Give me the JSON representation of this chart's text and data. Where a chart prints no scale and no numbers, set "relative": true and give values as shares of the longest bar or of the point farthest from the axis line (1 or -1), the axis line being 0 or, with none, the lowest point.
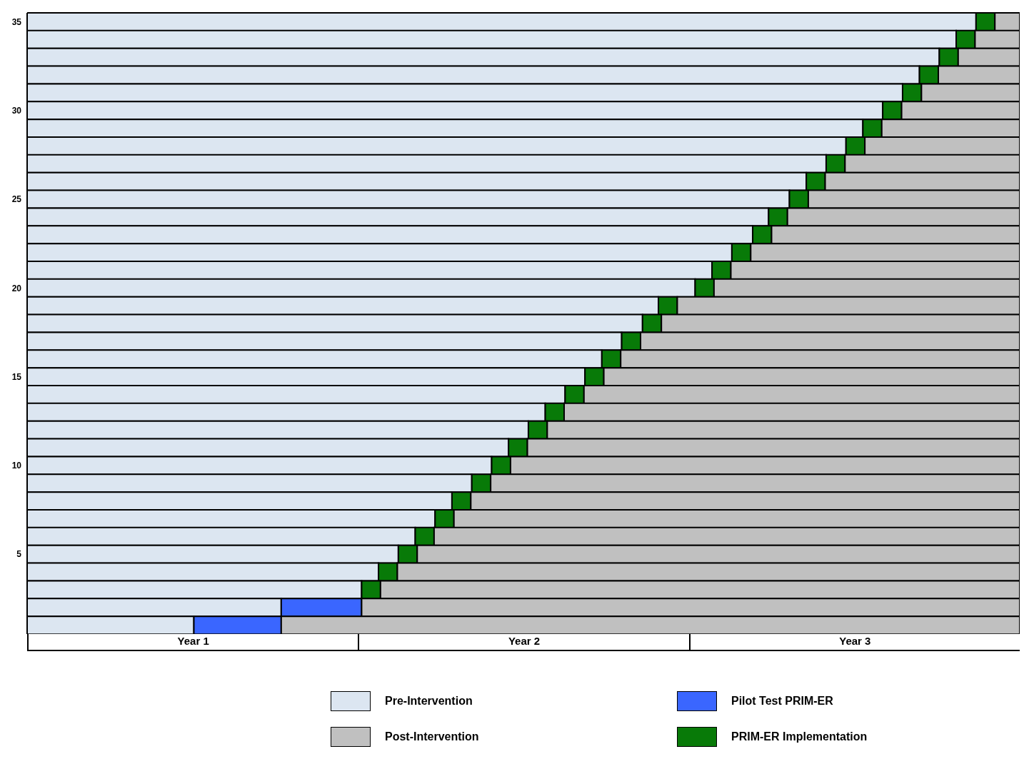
{
  "chart_data": {
    "type": "bar",
    "orientation": "horizontal",
    "stacked": true,
    "legend": "bottom",
    "relative": true,
    "categories": [
      "35",
      null,
      null,
      null,
      null,
      "30",
      null,
      null,
      null,
      null,
      "25",
      null,
      null,
      null,
      null,
      "20",
      null,
      null,
      null,
      null,
      "15",
      null,
      null,
      null,
      null,
      "10",
      null,
      null,
      null,
      null,
      "5",
      null,
      null,
      null,
      null
    ],
    "annotations": [
      "Year 1",
      "Year 2",
      "Year 3"
    ],
    "series": [
      {
        "name": "Pre-Intervention",
        "color": "#dce6f1",
        "values": [
          0.956,
          0.936,
          0.919,
          0.899,
          0.882,
          0.862,
          0.842,
          0.825,
          0.805,
          0.785,
          0.768,
          0.747,
          0.731,
          0.71,
          0.69,
          0.673,
          0.636,
          0.62,
          0.599,
          0.579,
          0.562,
          0.542,
          0.522,
          0.505,
          0.485,
          0.468,
          0.448,
          0.428,
          0.411,
          0.391,
          0.374,
          0.354,
          0.337,
          0.256,
          0.168
        ]
      },
      {
        "name": "Pilot Test PRIM-ER",
        "color": "#3a66ff",
        "values": [
          null,
          null,
          null,
          null,
          null,
          null,
          null,
          null,
          null,
          null,
          null,
          null,
          null,
          null,
          null,
          null,
          null,
          null,
          null,
          null,
          null,
          null,
          null,
          null,
          null,
          null,
          null,
          null,
          null,
          null,
          null,
          null,
          null,
          0.081,
          0.088
        ]
      },
      {
        "name": "PRIM-ER Implementation",
        "color": "#087a08",
        "values": [
          0.019,
          0.019,
          0.019,
          0.019,
          0.019,
          0.019,
          0.019,
          0.019,
          0.019,
          0.019,
          0.019,
          0.019,
          0.019,
          0.019,
          0.019,
          0.019,
          0.019,
          0.019,
          0.019,
          0.019,
          0.019,
          0.019,
          0.019,
          0.019,
          0.019,
          0.019,
          0.019,
          0.019,
          0.019,
          0.019,
          0.019,
          0.019,
          0.019,
          null,
          null
        ]
      },
      {
        "name": "Post-Intervention",
        "color": "#c0c0c0",
        "values": [
          0.025,
          0.045,
          0.062,
          0.082,
          0.099,
          0.119,
          0.139,
          0.156,
          0.176,
          0.196,
          0.213,
          0.234,
          0.25,
          0.271,
          0.291,
          0.308,
          0.345,
          0.361,
          0.382,
          0.402,
          0.419,
          0.439,
          0.459,
          0.476,
          0.496,
          0.513,
          0.533,
          0.553,
          0.57,
          0.59,
          0.607,
          0.627,
          0.644,
          0.663,
          0.744
        ]
      }
    ]
  }
}
